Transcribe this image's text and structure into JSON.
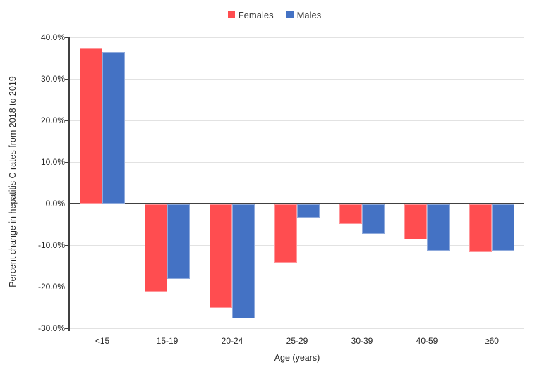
{
  "chart_data": {
    "type": "bar",
    "title": "",
    "categories": [
      "<15",
      "15-19",
      "20-24",
      "25-29",
      "30-39",
      "40-59",
      "≥60"
    ],
    "series": [
      {
        "name": "Females",
        "color": "#FF4D50",
        "border_color": "#FF9599",
        "values": [
          37.5,
          -21.0,
          -24.9,
          -14.0,
          -4.8,
          -8.5,
          -11.5
        ]
      },
      {
        "name": "Males",
        "color": "#4472C4",
        "border_color": "#8FAADC",
        "values": [
          36.4,
          -17.9,
          -27.4,
          -3.2,
          -7.2,
          -11.2,
          -11.2
        ]
      }
    ],
    "xlabel": "Age (years)",
    "ylabel": "Percent change in hepatitis C rates from 2018 to 2019",
    "ylim": [
      -30,
      40
    ],
    "ytick_step": 10,
    "ytick_suffix": "%",
    "ytick_decimals": 1,
    "legend_position": "top-center",
    "grid": true,
    "gridline_color": "#E2E2E2",
    "axis_color": "#404040",
    "text_color": "#262626",
    "background_color": "#FFFFFF"
  }
}
